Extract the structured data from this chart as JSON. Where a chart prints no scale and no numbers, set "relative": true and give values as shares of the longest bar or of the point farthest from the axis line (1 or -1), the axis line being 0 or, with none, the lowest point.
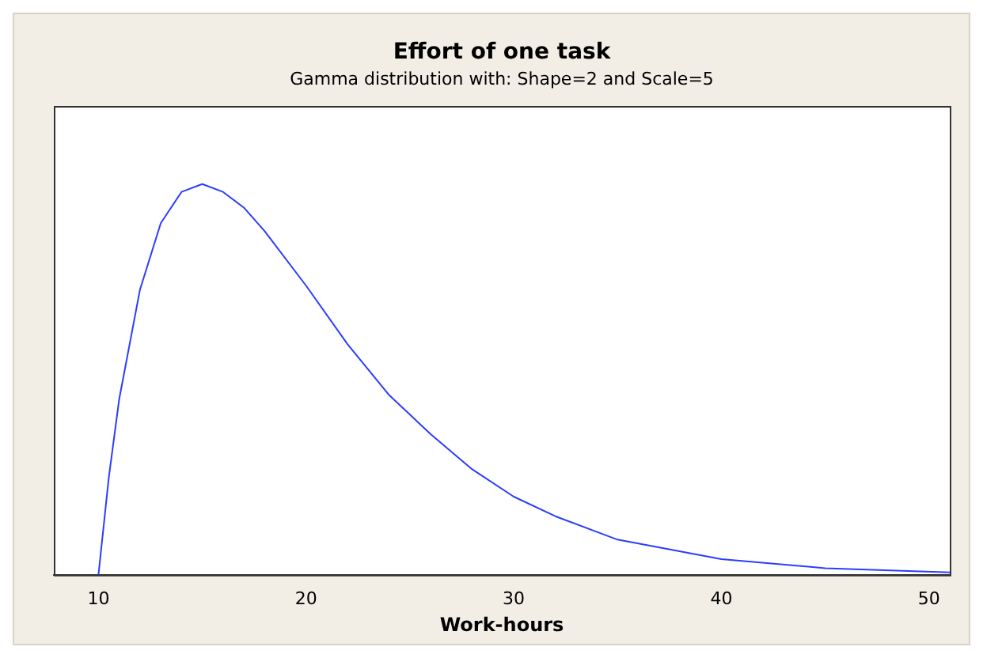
{
  "chart_data": {
    "type": "line",
    "title": "Effort of one task",
    "subtitle": "Gamma distribution with: Shape=2 and Scale=5",
    "xlabel": "Work-hours",
    "relative": true,
    "xlim": [
      7.85,
      51
    ],
    "xticks": [
      10,
      20,
      30,
      40,
      50
    ],
    "grid": false,
    "legend": false,
    "marker": "none",
    "line_style": "solid",
    "series": [
      {
        "color": "#2b3cff",
        "x": [
          10,
          10.5,
          11,
          12,
          13,
          14,
          15,
          16,
          17,
          18,
          20,
          22,
          24,
          26,
          28,
          30,
          32,
          35,
          40,
          45,
          51
        ],
        "values": [
          0,
          0.25,
          0.45,
          0.73,
          0.9,
          0.98,
          1,
          0.98,
          0.94,
          0.88,
          0.74,
          0.59,
          0.46,
          0.36,
          0.27,
          0.2,
          0.15,
          0.09,
          0.04,
          0.017,
          0.006
        ]
      }
    ]
  }
}
